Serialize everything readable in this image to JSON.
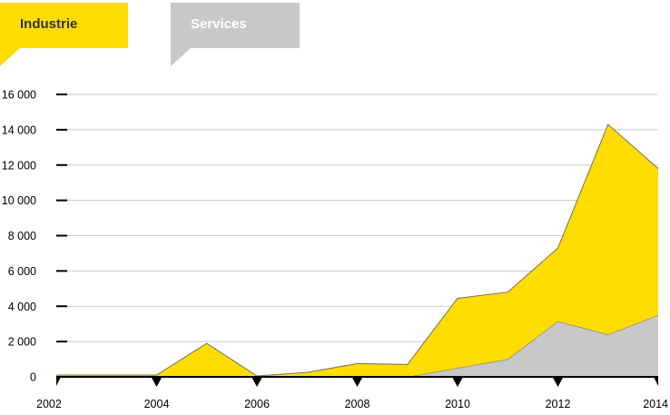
{
  "legend": {
    "items": [
      {
        "label": "Industrie",
        "color": "#FFDD00",
        "text_color": "#333333",
        "active": true
      },
      {
        "label": "Services",
        "color": "#C8C8C8",
        "text_color": "#FFFFFF",
        "active": false
      }
    ]
  },
  "colors": {
    "gridline": "#C8C8C8",
    "axis": "#000000",
    "series_outline": "#6E6E6E"
  },
  "chart_data": {
    "type": "area",
    "stacked": true,
    "title": "",
    "xlabel": "",
    "ylabel": "",
    "x": [
      2002,
      2003,
      2004,
      2005,
      2006,
      2007,
      2008,
      2009,
      2010,
      2011,
      2012,
      2013,
      2014
    ],
    "x_tick_labels": [
      "2002",
      "2004",
      "2006",
      "2008",
      "2010",
      "2012",
      "2014"
    ],
    "y_tick_labels": [
      "0",
      "2 000",
      "4 000",
      "6 000",
      "8 000",
      "10 000",
      "12 000",
      "14 000",
      "16 000"
    ],
    "y_ticks": [
      0,
      2000,
      4000,
      6000,
      8000,
      10000,
      12000,
      14000,
      16000
    ],
    "ylim": [
      0,
      16000
    ],
    "xlim": [
      2002,
      2014
    ],
    "grid": true,
    "legend_position": "top-left",
    "series": [
      {
        "name": "Services",
        "color": "#C8C8C8",
        "values": [
          0,
          0,
          0,
          0,
          0,
          0,
          0,
          0,
          500,
          1000,
          3150,
          2400,
          3500
        ]
      },
      {
        "name": "Industrie",
        "color": "#FFDD00",
        "values": [
          100,
          100,
          100,
          1900,
          50,
          250,
          750,
          700,
          3950,
          3800,
          4150,
          11900,
          8300
        ]
      }
    ]
  }
}
